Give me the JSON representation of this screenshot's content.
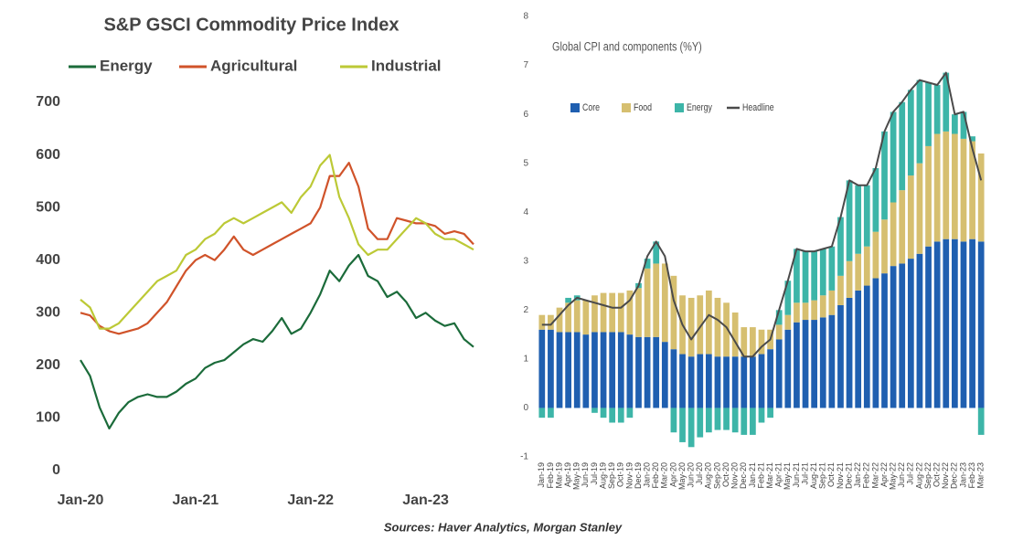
{
  "chart_data": [
    {
      "type": "line",
      "title": "S&P GSCI Commodity Price Index",
      "legend": "top",
      "categories": [
        "Jan-20",
        null,
        null,
        null,
        null,
        null,
        null,
        null,
        null,
        null,
        null,
        null,
        "Jan-21",
        null,
        null,
        null,
        null,
        null,
        null,
        null,
        null,
        null,
        null,
        null,
        "Jan-22",
        null,
        null,
        null,
        null,
        null,
        null,
        null,
        null,
        null,
        null,
        null,
        "Jan-23",
        null,
        null,
        null,
        null,
        null
      ],
      "series": [
        {
          "name": "Energy",
          "color": "#1b6b3a",
          "values": [
            210,
            180,
            120,
            80,
            110,
            130,
            140,
            145,
            140,
            140,
            150,
            165,
            175,
            195,
            205,
            210,
            225,
            240,
            250,
            245,
            265,
            290,
            260,
            270,
            300,
            335,
            380,
            360,
            390,
            410,
            370,
            360,
            330,
            340,
            320,
            290,
            300,
            285,
            275,
            280,
            250,
            235
          ]
        },
        {
          "name": "Agricultural",
          "color": "#d0532a",
          "values": [
            300,
            295,
            275,
            265,
            260,
            265,
            270,
            280,
            300,
            320,
            350,
            380,
            400,
            410,
            400,
            420,
            445,
            420,
            410,
            420,
            430,
            440,
            450,
            460,
            470,
            500,
            560,
            560,
            585,
            540,
            460,
            440,
            440,
            480,
            475,
            470,
            470,
            465,
            450,
            455,
            450,
            430
          ]
        },
        {
          "name": "Industrial",
          "color": "#bcc936",
          "values": [
            325,
            310,
            270,
            270,
            280,
            300,
            320,
            340,
            360,
            370,
            380,
            410,
            420,
            440,
            450,
            470,
            480,
            470,
            480,
            490,
            500,
            510,
            490,
            520,
            540,
            580,
            600,
            520,
            480,
            430,
            410,
            420,
            420,
            440,
            460,
            480,
            470,
            450,
            440,
            440,
            430,
            420
          ]
        }
      ],
      "ylim": [
        0,
        700
      ],
      "yticks": [
        0,
        100,
        200,
        300,
        400,
        500,
        600,
        700
      ],
      "grid": false
    },
    {
      "type": "bar",
      "stacked": true,
      "title": "Global CPI and components (%Y)",
      "legend": "upper left",
      "categories": [
        "Jan-19",
        "Feb-19",
        "Mar-19",
        "Apr-19",
        "May-19",
        "Jun-19",
        "Jul-19",
        "Aug-19",
        "Sep-19",
        "Oct-19",
        "Nov-19",
        "Dec-19",
        "Jan-20",
        "Feb-20",
        "Mar-20",
        "Apr-20",
        "May-20",
        "Jun-20",
        "Jul-20",
        "Aug-20",
        "Sep-20",
        "Oct-20",
        "Nov-20",
        "Dec-20",
        "Jan-21",
        "Feb-21",
        "Mar-21",
        "Apr-21",
        "May-21",
        "Jun-21",
        "Jul-21",
        "Aug-21",
        "Sep-21",
        "Oct-21",
        "Nov-21",
        "Dec-21",
        "Jan-22",
        "Feb-22",
        "Mar-22",
        "Apr-22",
        "May-22",
        "Jun-22",
        "Jul-22",
        "Aug-22",
        "Sep-22",
        "Oct-22",
        "Nov-22",
        "Dec-22",
        "Jan-23",
        "Feb-23",
        "Mar-23"
      ],
      "series": [
        {
          "name": "Core",
          "color": "#1f5fb0",
          "values": [
            1.6,
            1.6,
            1.55,
            1.55,
            1.55,
            1.5,
            1.55,
            1.55,
            1.55,
            1.55,
            1.5,
            1.45,
            1.45,
            1.45,
            1.35,
            1.2,
            1.1,
            1.05,
            1.1,
            1.1,
            1.05,
            1.05,
            1.05,
            1.05,
            1.05,
            1.1,
            1.2,
            1.4,
            1.6,
            1.75,
            1.8,
            1.8,
            1.85,
            1.9,
            2.1,
            2.25,
            2.4,
            2.5,
            2.65,
            2.75,
            2.9,
            2.95,
            3.05,
            3.15,
            3.3,
            3.4,
            3.45,
            3.45,
            3.4,
            3.45,
            3.4
          ]
        },
        {
          "name": "Food",
          "color": "#d6bf70",
          "values": [
            0.3,
            0.3,
            0.5,
            0.6,
            0.65,
            0.7,
            0.75,
            0.8,
            0.8,
            0.8,
            0.9,
            1.0,
            1.4,
            1.5,
            1.6,
            1.5,
            1.2,
            1.2,
            1.2,
            1.3,
            1.2,
            1.1,
            0.9,
            0.6,
            0.6,
            0.5,
            0.4,
            0.3,
            0.3,
            0.4,
            0.35,
            0.4,
            0.45,
            0.5,
            0.6,
            0.75,
            0.75,
            0.8,
            0.95,
            1.1,
            1.3,
            1.5,
            1.7,
            1.85,
            2.05,
            2.2,
            2.2,
            2.15,
            2.1,
            2.0,
            1.8
          ]
        },
        {
          "name": "Energy",
          "color": "#3db5a8",
          "values": [
            -0.2,
            -0.2,
            0.0,
            0.1,
            0.1,
            0.0,
            -0.1,
            -0.2,
            -0.3,
            -0.3,
            -0.2,
            0.1,
            0.2,
            0.45,
            0.0,
            -0.5,
            -0.7,
            -0.8,
            -0.6,
            -0.5,
            -0.45,
            -0.45,
            -0.5,
            -0.55,
            -0.55,
            -0.3,
            -0.2,
            0.3,
            0.7,
            1.1,
            1.05,
            1.0,
            0.95,
            0.9,
            1.2,
            1.65,
            1.4,
            1.25,
            1.3,
            1.8,
            1.85,
            1.8,
            1.75,
            1.7,
            1.3,
            1.0,
            1.2,
            0.4,
            0.55,
            0.1,
            -0.55
          ]
        },
        {
          "name": "Headline",
          "color": "#4a4a4a",
          "type": "line",
          "values": [
            1.7,
            1.7,
            1.9,
            2.1,
            2.25,
            2.2,
            2.15,
            2.1,
            2.05,
            2.05,
            2.2,
            2.5,
            3.1,
            3.4,
            3.1,
            2.2,
            1.7,
            1.4,
            1.65,
            1.9,
            1.8,
            1.65,
            1.35,
            1.05,
            1.05,
            1.25,
            1.4,
            2.0,
            2.6,
            3.25,
            3.2,
            3.2,
            3.25,
            3.3,
            3.9,
            4.65,
            4.55,
            4.55,
            4.9,
            5.65,
            6.05,
            6.25,
            6.5,
            6.7,
            6.65,
            6.6,
            6.85,
            6.0,
            6.05,
            5.3,
            4.65
          ]
        }
      ],
      "ylim": [
        -1,
        8
      ],
      "yticks": [
        -1,
        0,
        1,
        2,
        3,
        4,
        5,
        6,
        7,
        8
      ],
      "grid": false
    }
  ],
  "source": "Sources: Haver Analytics, Morgan Stanley"
}
